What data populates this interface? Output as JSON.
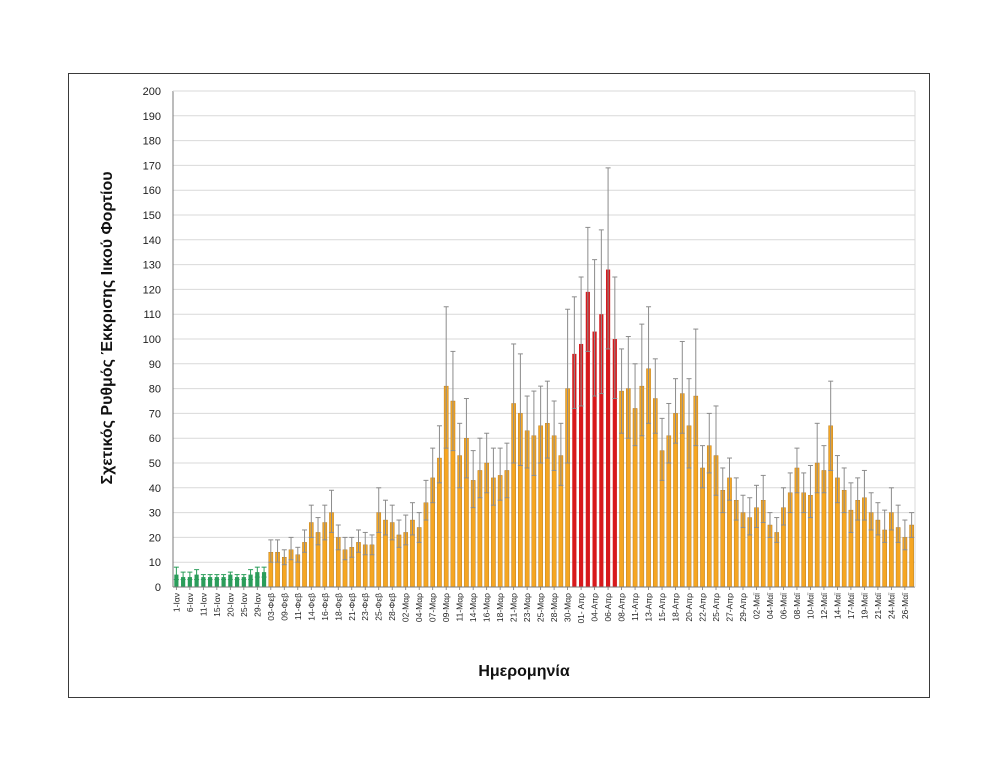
{
  "chart_data": {
    "type": "bar",
    "title": "",
    "xlabel": "Ημερομηνία",
    "ylabel": "Σχετικός Ρυθμός Έκκρισης Ιικού Φορτίου",
    "ylim": [
      0,
      200
    ],
    "yticks": [
      0,
      10,
      20,
      30,
      40,
      50,
      60,
      70,
      80,
      90,
      100,
      110,
      120,
      130,
      140,
      150,
      160,
      170,
      180,
      190,
      200
    ],
    "grid": true,
    "legend": "none",
    "colors": {
      "green": "#2a9d5a",
      "orange": "#f5a623",
      "red": "#d7191c",
      "edge": "#b07010",
      "error": "#8c8c8c",
      "grid": "#d9d9d9",
      "axis": "#7a7a7a"
    },
    "x_tick_labels": [
      "1-Ιαν",
      "6-Ιαν",
      "11-Ιαν",
      "15-Ιαν",
      "20-Ιαν",
      "25-Ιαν",
      "29-Ιαν",
      "03-Φεβ",
      "09-Φεβ",
      "11-Φεβ",
      "14-Φεβ",
      "16-Φεβ",
      "18-Φεβ",
      "21-Φεβ",
      "23-Φεβ",
      "25-Φεβ",
      "28-Φεβ",
      "02-Μαρ",
      "04-Μαρ",
      "07-Μαρ",
      "09-Μαρ",
      "11-Μαρ",
      "14-Μαρ",
      "16-Μαρ",
      "18-Μαρ",
      "21-Μαρ",
      "23-Μαρ",
      "25-Μαρ",
      "28-Μαρ",
      "30-Μαρ",
      "01- Απρ",
      "04-Απρ",
      "06-Απρ",
      "08-Απρ",
      "11-Απρ",
      "13-Απρ",
      "15-Απρ",
      "18-Απρ",
      "20-Απρ",
      "22-Απρ",
      "25-Απρ",
      "27-Απρ",
      "29-Απρ",
      "02-Μαϊ",
      "04-Μαϊ",
      "06-Μαϊ",
      "08-Μαϊ",
      "10-Μαϊ",
      "12-Μαϊ",
      "14-Μαϊ",
      "17-Μαϊ",
      "19-Μαϊ",
      "21-Μαϊ",
      "24-Μαϊ",
      "26-Μαϊ"
    ],
    "values": [
      5,
      4,
      4,
      5,
      4,
      4,
      4,
      4,
      5,
      4,
      4,
      5,
      6,
      6,
      14,
      14,
      12,
      15,
      13,
      18,
      26,
      22,
      26,
      30,
      20,
      15,
      16,
      18,
      17,
      17,
      30,
      27,
      26,
      21,
      22,
      27,
      24,
      34,
      44,
      52,
      81,
      75,
      53,
      60,
      43,
      47,
      50,
      44,
      45,
      47,
      74,
      70,
      63,
      61,
      65,
      66,
      61,
      53,
      80,
      94,
      98,
      119,
      103,
      110,
      128,
      100,
      79,
      80,
      72,
      81,
      88,
      76,
      55,
      61,
      70,
      78,
      65,
      77,
      48,
      57,
      53,
      39,
      44,
      35,
      30,
      28,
      32,
      35,
      25,
      22,
      32,
      38,
      48,
      38,
      37,
      50,
      47,
      65,
      44,
      39,
      31,
      35,
      36,
      30,
      27,
      23,
      30,
      24,
      20,
      25
    ],
    "error_high": [
      8,
      6,
      6,
      7,
      5,
      5,
      5,
      5,
      6,
      5,
      5,
      7,
      8,
      8,
      19,
      19,
      15,
      20,
      16,
      23,
      33,
      28,
      33,
      39,
      25,
      20,
      20,
      23,
      22,
      21,
      40,
      35,
      33,
      27,
      29,
      34,
      30,
      43,
      56,
      65,
      113,
      95,
      66,
      76,
      55,
      60,
      62,
      56,
      56,
      58,
      98,
      94,
      77,
      79,
      81,
      83,
      75,
      66,
      112,
      117,
      125,
      145,
      132,
      144,
      169,
      125,
      96,
      101,
      90,
      106,
      113,
      92,
      68,
      74,
      84,
      99,
      84,
      104,
      57,
      70,
      73,
      48,
      52,
      44,
      37,
      36,
      41,
      45,
      30,
      28,
      40,
      46,
      56,
      46,
      49,
      66,
      57,
      83,
      53,
      48,
      42,
      44,
      47,
      38,
      34,
      31,
      40,
      33,
      27,
      30
    ],
    "error_low": [
      3,
      3,
      3,
      3,
      3,
      3,
      3,
      3,
      3,
      3,
      3,
      3,
      4,
      4,
      10,
      10,
      9,
      11,
      10,
      14,
      20,
      17,
      19,
      22,
      15,
      11,
      12,
      14,
      13,
      13,
      22,
      21,
      19,
      16,
      17,
      21,
      18,
      27,
      34,
      42,
      56,
      55,
      40,
      44,
      32,
      36,
      38,
      33,
      35,
      36,
      50,
      49,
      48,
      45,
      50,
      52,
      47,
      41,
      50,
      72,
      73,
      95,
      77,
      78,
      96,
      76,
      62,
      60,
      57,
      61,
      66,
      62,
      43,
      50,
      58,
      62,
      48,
      57,
      40,
      46,
      37,
      30,
      35,
      27,
      24,
      21,
      24,
      26,
      20,
      18,
      25,
      30,
      38,
      30,
      28,
      38,
      38,
      47,
      34,
      30,
      22,
      27,
      27,
      23,
      21,
      18,
      23,
      18,
      15,
      20
    ],
    "color_groups": [
      {
        "color": "green",
        "from": 0,
        "to": 13
      },
      {
        "color": "orange",
        "from": 14,
        "to": 58
      },
      {
        "color": "red",
        "from": 59,
        "to": 65
      },
      {
        "color": "orange",
        "from": 66,
        "to": 109
      }
    ]
  }
}
